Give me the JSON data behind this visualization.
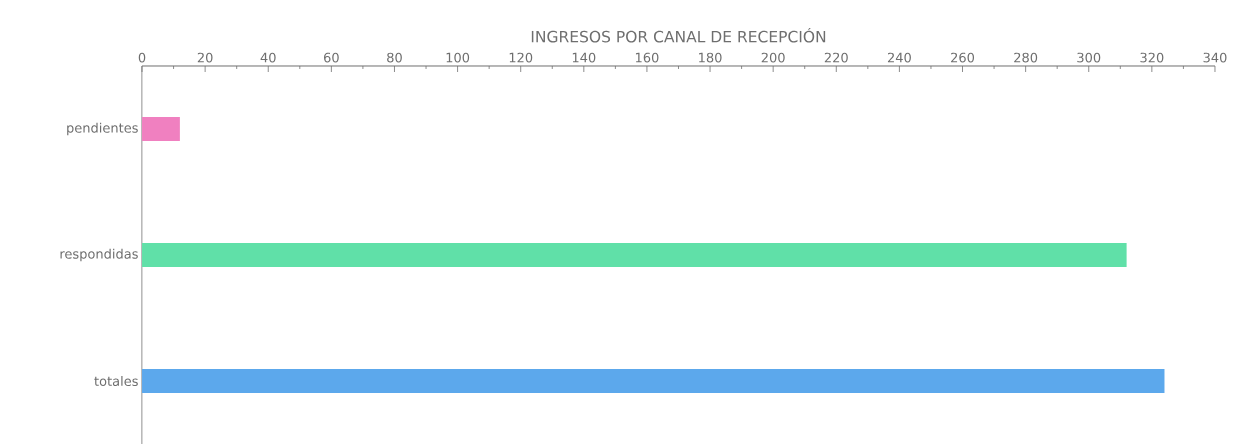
{
  "chart_data": {
    "type": "bar",
    "orientation": "horizontal",
    "title": "INGRESOS POR CANAL DE RECEPCIÓN",
    "categories": [
      "pendientes",
      "respondidas",
      "totales"
    ],
    "values": [
      12,
      312,
      324
    ],
    "colors": [
      "#f080c0",
      "#60e0a8",
      "#5ca8ec"
    ],
    "xlim": [
      0,
      340
    ],
    "xticks": [
      0,
      20,
      40,
      60,
      80,
      100,
      120,
      140,
      160,
      180,
      200,
      220,
      240,
      260,
      280,
      300,
      320,
      340
    ]
  }
}
